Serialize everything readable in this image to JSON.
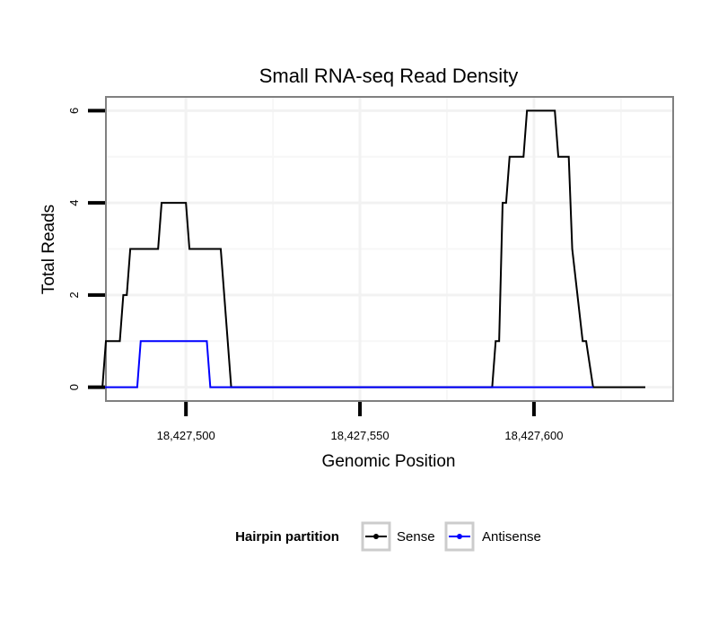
{
  "chart_data": {
    "type": "line",
    "title": "Small RNA-seq Read Density",
    "xlabel": "Genomic Position",
    "ylabel": "Total Reads",
    "xlim": [
      18427477,
      18427640
    ],
    "ylim": [
      -0.3,
      6.3
    ],
    "x_ticks": [
      18427500,
      18427550,
      18427600
    ],
    "x_tick_labels": [
      "18,427,500",
      "18,427,550",
      "18,427,600"
    ],
    "y_ticks": [
      0,
      2,
      4,
      6
    ],
    "y_tick_labels": [
      "0",
      "2",
      "4",
      "6"
    ],
    "grid": true,
    "legend": {
      "title": "Hairpin partition",
      "position": "bottom"
    },
    "series": [
      {
        "name": "Sense",
        "color": "#000000",
        "points": [
          [
            18427476,
            0
          ],
          [
            18427477,
            1
          ],
          [
            18427481,
            1
          ],
          [
            18427482,
            2
          ],
          [
            18427483,
            2
          ],
          [
            18427484,
            3
          ],
          [
            18427492,
            3
          ],
          [
            18427493,
            4
          ],
          [
            18427500,
            4
          ],
          [
            18427501,
            3
          ],
          [
            18427510,
            3
          ],
          [
            18427513,
            0
          ],
          [
            18427588,
            0
          ],
          [
            18427589,
            1
          ],
          [
            18427590,
            1
          ],
          [
            18427591,
            4
          ],
          [
            18427592,
            4
          ],
          [
            18427593,
            5
          ],
          [
            18427597,
            5
          ],
          [
            18427598,
            6
          ],
          [
            18427606,
            6
          ],
          [
            18427607,
            5
          ],
          [
            18427610,
            5
          ],
          [
            18427611,
            3
          ],
          [
            18427614,
            1
          ],
          [
            18427615,
            1
          ],
          [
            18427617,
            0
          ],
          [
            18427632,
            0
          ]
        ]
      },
      {
        "name": "Antisense",
        "color": "#0000ff",
        "points": [
          [
            18427476,
            0
          ],
          [
            18427486,
            0
          ],
          [
            18427487,
            1
          ],
          [
            18427506,
            1
          ],
          [
            18427507,
            0
          ],
          [
            18427617,
            0
          ]
        ]
      }
    ]
  }
}
